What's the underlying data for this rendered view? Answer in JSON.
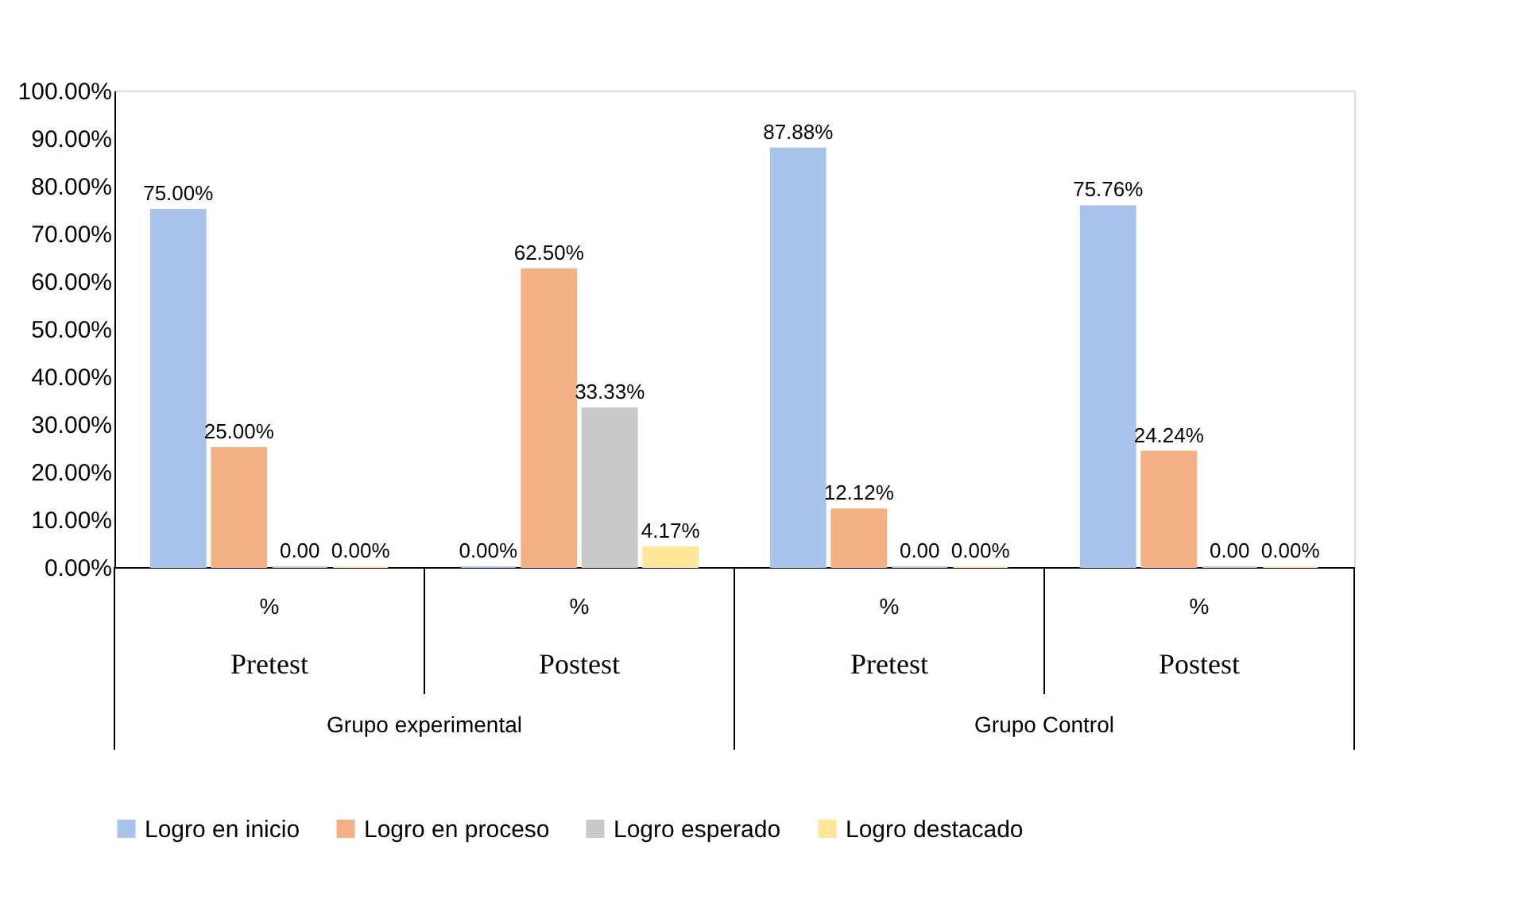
{
  "chart_data": {
    "type": "bar",
    "categories": [
      "%",
      "%",
      "%",
      "%"
    ],
    "series": [
      {
        "name": "Logro en inicio",
        "color": "#a9c4eb",
        "values": [
          75.0,
          0.0,
          87.88,
          75.76
        ],
        "value_labels": [
          "75.00%",
          "0.00%",
          "87.88%",
          "75.76%"
        ]
      },
      {
        "name": "Logro en proceso",
        "color": "#f4b183",
        "values": [
          25.0,
          62.5,
          12.12,
          24.24
        ],
        "value_labels": [
          "25.00%",
          "62.50%",
          "12.12%",
          "24.24%"
        ]
      },
      {
        "name": "Logro esperado",
        "color": "#c9c9c9",
        "values": [
          0.0,
          33.33,
          0.0,
          0.0
        ],
        "value_labels": [
          "0.00",
          "33.33%",
          "0.00",
          "0.00"
        ]
      },
      {
        "name": "Logro destacado",
        "color": "#ffe699",
        "values": [
          0.0,
          4.17,
          0.0,
          0.0
        ],
        "value_labels": [
          "0.00%",
          "4.17%",
          "0.00%",
          "0.00%"
        ]
      }
    ],
    "annotations": [
      "Pretest",
      "Postest",
      "Pretest",
      "Postest",
      "Grupo experimental",
      "Grupo Control"
    ],
    "ylim": [
      0,
      100
    ],
    "yticks": [
      {
        "value": 0,
        "label": "0.00%"
      },
      {
        "value": 10,
        "label": "10.00%"
      },
      {
        "value": 20,
        "label": "20.00%"
      },
      {
        "value": 30,
        "label": "30.00%"
      },
      {
        "value": 40,
        "label": "40.00%"
      },
      {
        "value": 50,
        "label": "50.00%"
      },
      {
        "value": 60,
        "label": "60.00%"
      },
      {
        "value": 70,
        "label": "70.00%"
      },
      {
        "value": 80,
        "label": "80.00%"
      },
      {
        "value": 90,
        "label": "90.00%"
      },
      {
        "value": 100,
        "label": "100.00%"
      }
    ],
    "grid": false,
    "legend": "bottom"
  }
}
